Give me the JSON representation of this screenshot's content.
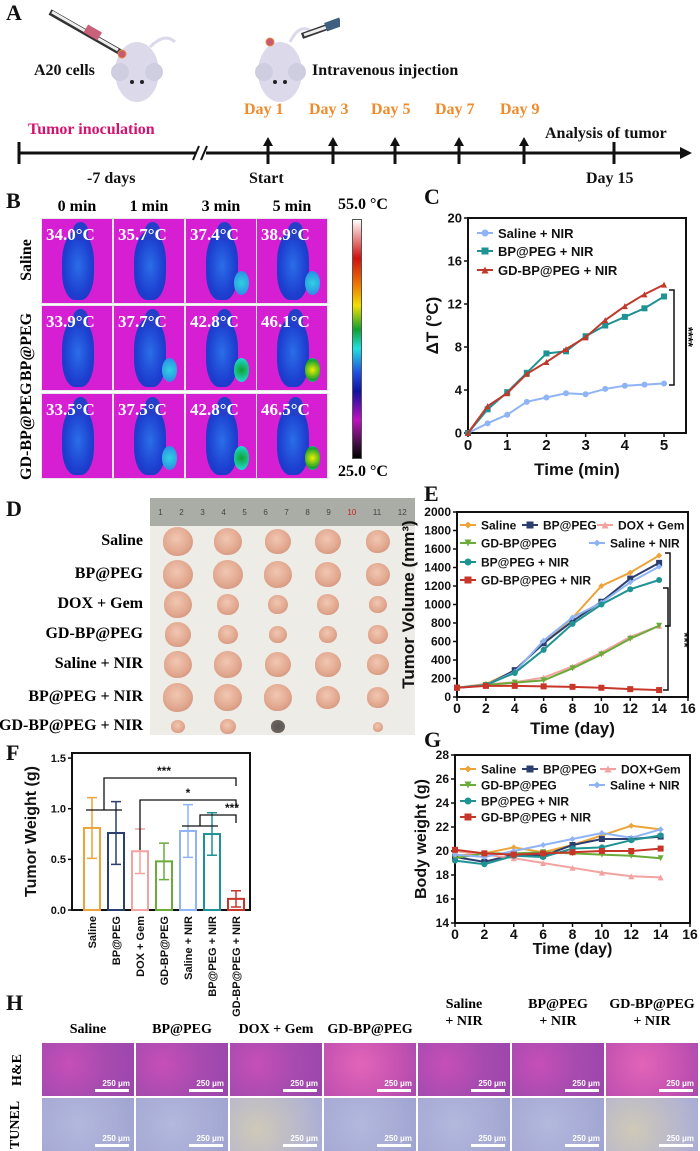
{
  "panel_labels": {
    "a": "A",
    "b": "B",
    "c": "C",
    "d": "D",
    "e": "E",
    "f": "F",
    "g": "G",
    "h": "H"
  },
  "panel_a": {
    "left_caption": "A20 cells",
    "right_caption": "Intravenous injection",
    "inoculation_label": "Tumor inoculation",
    "analysis_label": "Analysis of tumor",
    "injection_days": [
      "Day 1",
      "Day 3",
      "Day 5",
      "Day 7",
      "Day 9"
    ],
    "below_labels": {
      "pre": "-7 days",
      "start": "Start",
      "end": "Day 15"
    },
    "colors": {
      "inoculation": "#d3136e",
      "days": "#f08a2c"
    }
  },
  "panel_b": {
    "columns": [
      "0 min",
      "1 min",
      "3 min",
      "5 min"
    ],
    "rows": [
      {
        "label": "Saline",
        "temps": [
          "34.0°C",
          "35.7°C",
          "37.4°C",
          "38.9°C"
        ]
      },
      {
        "label": "BP@PEG",
        "temps": [
          "33.9°C",
          "37.7°C",
          "42.8°C",
          "46.1°C"
        ]
      },
      {
        "label": "GD-BP@PEG",
        "temps": [
          "33.5°C",
          "37.5°C",
          "42.8°C",
          "46.5°C"
        ]
      }
    ],
    "colorbar": {
      "max": "55.0 °C",
      "min": "25.0 °C"
    }
  },
  "panel_d": {
    "rows": [
      "Saline",
      "BP@PEG",
      "DOX + Gem",
      "GD-BP@PEG",
      "Saline + NIR",
      "BP@PEG + NIR",
      "GD-BP@PEG + NIR"
    ],
    "ruler": [
      "1",
      "2",
      "3",
      "4",
      "5",
      "6",
      "7",
      "8",
      "9",
      "10",
      "11",
      "12"
    ]
  },
  "panel_h": {
    "columns": [
      [
        "Saline",
        ""
      ],
      [
        "BP@PEG",
        ""
      ],
      [
        "DOX + Gem",
        ""
      ],
      [
        "GD-BP@PEG",
        ""
      ],
      [
        "Saline",
        "+ NIR"
      ],
      [
        "BP@PEG",
        "+ NIR"
      ],
      [
        "GD-BP@PEG",
        "+ NIR"
      ]
    ],
    "rows": [
      "H&E",
      "TUNEL"
    ],
    "scale_bar": "250 μm"
  },
  "chart_data": [
    {
      "type": "line",
      "x": [
        0,
        0.5,
        1,
        1.5,
        2,
        2.5,
        3,
        3.5,
        4,
        4.5,
        5
      ],
      "xlim": [
        0,
        5.56
      ],
      "xticks": [
        0,
        1,
        2,
        3,
        4,
        5
      ],
      "ylim": [
        0,
        20
      ],
      "yticks": [
        0,
        4,
        8,
        12,
        16,
        20
      ],
      "xlabel": "Time (min)",
      "ylabel": "ΔT (°C)",
      "legend": "top-left",
      "series": [
        {
          "name": "Saline + NIR",
          "color": "#8fb4f5",
          "marker": "circle",
          "values": [
            0,
            0.9,
            1.7,
            2.9,
            3.3,
            3.7,
            3.6,
            4.1,
            4.4,
            4.5,
            4.6
          ]
        },
        {
          "name": "BP@PEG + NIR",
          "color": "#1f9393",
          "marker": "square",
          "values": [
            0,
            2.2,
            3.8,
            5.6,
            7.4,
            7.6,
            9.0,
            10.0,
            10.8,
            11.6,
            12.7
          ]
        },
        {
          "name": "GD-BP@PEG + NIR",
          "color": "#c0392b",
          "marker": "triangle",
          "values": [
            0,
            2.5,
            3.7,
            5.5,
            6.6,
            7.8,
            8.9,
            10.5,
            11.8,
            12.9,
            13.8
          ]
        }
      ],
      "annotations": [
        "****"
      ]
    },
    {
      "type": "line",
      "x": [
        0,
        2,
        4,
        6,
        8,
        10,
        12,
        14
      ],
      "xlim": [
        0,
        16
      ],
      "xticks": [
        0,
        2,
        4,
        6,
        8,
        10,
        12,
        14,
        16
      ],
      "ylim": [
        0,
        2000
      ],
      "yticks": [
        0,
        200,
        400,
        600,
        800,
        1000,
        1200,
        1400,
        1600,
        1800,
        2000
      ],
      "xlabel": "Time (day)",
      "ylabel": "Tumor Volume (mm³)",
      "legend": "top-left",
      "series": [
        {
          "name": "Saline",
          "color": "#eca43a",
          "marker": "diamond",
          "values": [
            100,
            140,
            285,
            590,
            855,
            1200,
            1345,
            1530
          ]
        },
        {
          "name": "BP@PEG",
          "color": "#2c3e6e",
          "marker": "square",
          "values": [
            100,
            125,
            290,
            580,
            820,
            1030,
            1280,
            1450
          ]
        },
        {
          "name": "DOX + Gem",
          "color": "#f2a3a0",
          "marker": "triangle",
          "values": [
            100,
            135,
            160,
            210,
            330,
            480,
            650,
            770
          ]
        },
        {
          "name": "GD-BP@PEG",
          "color": "#6aab3a",
          "marker": "triangle-down",
          "values": [
            100,
            130,
            155,
            180,
            310,
            460,
            630,
            770
          ]
        },
        {
          "name": "Saline + NIR",
          "color": "#8fb4f5",
          "marker": "diamond",
          "values": [
            100,
            130,
            270,
            610,
            860,
            1020,
            1240,
            1410
          ]
        },
        {
          "name": "BP@PEG + NIR",
          "color": "#1f9393",
          "marker": "circle",
          "values": [
            100,
            130,
            260,
            510,
            790,
            1000,
            1165,
            1265
          ]
        },
        {
          "name": "GD-BP@PEG + NIR",
          "color": "#c8362a",
          "marker": "square",
          "values": [
            100,
            120,
            120,
            115,
            110,
            100,
            85,
            75
          ]
        }
      ],
      "annotations": [
        "***"
      ]
    },
    {
      "type": "bar",
      "categories": [
        "Saline",
        "BP@PEG",
        "DOX + Gem",
        "GD-BP@PEG",
        "Saline + NIR",
        "BP@PEG + NIR",
        "GD-BP@PEG + NIR"
      ],
      "values": [
        0.81,
        0.76,
        0.58,
        0.48,
        0.78,
        0.75,
        0.11
      ],
      "error": [
        0.3,
        0.31,
        0.22,
        0.18,
        0.26,
        0.21,
        0.08
      ],
      "colors": [
        "#eca43a",
        "#2c3e6e",
        "#f2a3a0",
        "#6aab3a",
        "#8fb4f5",
        "#1f9393",
        "#c8362a"
      ],
      "ylim": [
        0,
        1.55
      ],
      "yticks": [
        0.0,
        0.5,
        1.0,
        1.5
      ],
      "xlabel": "",
      "ylabel": "Tumor Weight (g)",
      "annotations": [
        "***",
        "*",
        "***"
      ]
    },
    {
      "type": "line",
      "x": [
        0,
        2,
        4,
        6,
        8,
        10,
        12,
        14
      ],
      "xlim": [
        0,
        16
      ],
      "xticks": [
        0,
        2,
        4,
        6,
        8,
        10,
        12,
        14,
        16
      ],
      "ylim": [
        14,
        28
      ],
      "yticks": [
        14,
        16,
        18,
        20,
        22,
        24,
        26,
        28
      ],
      "xlabel": "Time (day)",
      "ylabel": "Body weight (g)",
      "legend": "top-left",
      "series": [
        {
          "name": "Saline",
          "color": "#eca43a",
          "marker": "diamond",
          "values": [
            19.6,
            19.8,
            20.3,
            19.9,
            20.5,
            21.3,
            22.1,
            21.8
          ]
        },
        {
          "name": "BP@PEG",
          "color": "#2c3e6e",
          "marker": "square",
          "values": [
            19.5,
            19.1,
            19.7,
            19.6,
            20.5,
            21.0,
            21.0,
            21.2
          ]
        },
        {
          "name": "DOX+Gem",
          "color": "#f2a3a0",
          "marker": "triangle",
          "values": [
            20.0,
            19.7,
            19.4,
            19.0,
            18.6,
            18.2,
            17.9,
            17.8
          ]
        },
        {
          "name": "GD-BP@PEG",
          "color": "#6aab3a",
          "marker": "triangle-down",
          "values": [
            19.4,
            19.8,
            19.8,
            19.9,
            19.8,
            19.7,
            19.6,
            19.4
          ]
        },
        {
          "name": "Saline + NIR",
          "color": "#8fb4f5",
          "marker": "diamond",
          "values": [
            19.7,
            19.5,
            20.0,
            20.5,
            21.0,
            21.5,
            21.1,
            21.8
          ]
        },
        {
          "name": "BP@PEG + NIR",
          "color": "#1f9393",
          "marker": "circle",
          "values": [
            19.2,
            18.9,
            19.6,
            19.5,
            20.2,
            20.3,
            20.9,
            21.3
          ]
        },
        {
          "name": "GD-BP@PEG + NIR",
          "color": "#c8362a",
          "marker": "square",
          "values": [
            20.1,
            19.8,
            19.7,
            19.8,
            19.9,
            20.0,
            20.0,
            20.2
          ]
        }
      ]
    }
  ]
}
